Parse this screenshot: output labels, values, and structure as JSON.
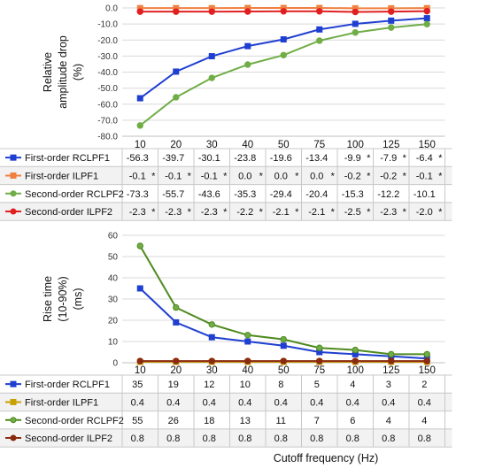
{
  "chart_data": [
    {
      "type": "line",
      "ylabel": [
        "Relative",
        "amplitude drop",
        "(%)"
      ],
      "ylim": [
        -80,
        0
      ],
      "ytick_labels": [
        "0.0",
        "-10.0",
        "-20.0",
        "-30.0",
        "-40.0",
        "-50.0",
        "-60.0",
        "-70.0",
        "-80.0"
      ],
      "ytick_values": [
        0,
        -10,
        -20,
        -30,
        -40,
        -50,
        -60,
        -70,
        -80
      ],
      "categories": [
        "10",
        "20",
        "30",
        "40",
        "50",
        "75",
        "100",
        "125",
        "150"
      ],
      "grid": true,
      "legend_placement": "table-below",
      "series": [
        {
          "name": "First-order RCLPF1",
          "color": "#1f3fd0",
          "marker": "square",
          "values": [
            -56.3,
            -39.7,
            -30.1,
            -23.8,
            -19.6,
            -13.4,
            -9.9,
            -7.9,
            -6.4
          ],
          "labels": [
            "-56.3",
            "-39.7",
            "-30.1",
            "-23.8",
            "-19.6",
            "-13.4",
            "-9.9",
            "-7.9",
            "-6.4"
          ],
          "stars": [
            false,
            false,
            false,
            false,
            false,
            false,
            true,
            true,
            true
          ]
        },
        {
          "name": "First-order ILPF1",
          "color": "#f08040",
          "marker": "square",
          "values": [
            -0.1,
            -0.1,
            -0.1,
            0.0,
            0.0,
            0.0,
            -0.2,
            -0.2,
            -0.1
          ],
          "labels": [
            "-0.1",
            "-0.1",
            "-0.1",
            "0.0",
            "0.0",
            "0.0",
            "-0.2",
            "-0.2",
            "-0.1"
          ],
          "stars": [
            true,
            true,
            true,
            true,
            true,
            true,
            true,
            true,
            true
          ]
        },
        {
          "name": "Second-order RCLPF2",
          "color": "#70ad47",
          "marker": "circle",
          "values": [
            -73.3,
            -55.7,
            -43.6,
            -35.3,
            -29.4,
            -20.4,
            -15.3,
            -12.2,
            -10.1
          ],
          "labels": [
            "-73.3",
            "-55.7",
            "-43.6",
            "-35.3",
            "-29.4",
            "-20.4",
            "-15.3",
            "-12.2",
            "-10.1"
          ],
          "stars": [
            false,
            false,
            false,
            false,
            false,
            false,
            false,
            false,
            false
          ]
        },
        {
          "name": "Second-order ILPF2",
          "color": "#e02020",
          "marker": "circle",
          "values": [
            -2.3,
            -2.3,
            -2.3,
            -2.2,
            -2.1,
            -2.1,
            -2.5,
            -2.3,
            -2.0
          ],
          "labels": [
            "-2.3",
            "-2.3",
            "-2.3",
            "-2.2",
            "-2.1",
            "-2.1",
            "-2.5",
            "-2.3",
            "-2.0"
          ],
          "stars": [
            true,
            true,
            true,
            true,
            true,
            true,
            true,
            true,
            true
          ]
        }
      ]
    },
    {
      "type": "line",
      "ylabel": [
        "Rise time",
        "(10-90%)",
        "(ms)"
      ],
      "ylim": [
        0,
        60
      ],
      "ytick_labels": [
        "0",
        "10",
        "20",
        "30",
        "40",
        "50",
        "60"
      ],
      "ytick_values": [
        0,
        10,
        20,
        30,
        40,
        50,
        60
      ],
      "categories": [
        "10",
        "20",
        "30",
        "40",
        "50",
        "75",
        "100",
        "125",
        "150"
      ],
      "xlabel": "Cutoff frequency (Hz)",
      "grid": true,
      "legend_placement": "table-below",
      "series": [
        {
          "name": "First-order RCLPF1",
          "color": "#1f3fd0",
          "marker": "square",
          "values": [
            35,
            19,
            12,
            10,
            8,
            5,
            4,
            3,
            2
          ],
          "labels": [
            "35",
            "19",
            "12",
            "10",
            "8",
            "5",
            "4",
            "3",
            "2"
          ]
        },
        {
          "name": "First-order ILPF1",
          "color": "#c8a000",
          "marker": "square",
          "values": [
            0.4,
            0.4,
            0.4,
            0.4,
            0.4,
            0.4,
            0.4,
            0.4,
            0.4
          ],
          "labels": [
            "0.4",
            "0.4",
            "0.4",
            "0.4",
            "0.4",
            "0.4",
            "0.4",
            "0.4",
            "0.4"
          ]
        },
        {
          "name": "Second-order RCLPF2",
          "color": "#4e8a1e",
          "fill": "#70ad47",
          "marker": "circle",
          "values": [
            55,
            26,
            18,
            13,
            11,
            7,
            6,
            4,
            4
          ],
          "labels": [
            "55",
            "26",
            "18",
            "13",
            "11",
            "7",
            "6",
            "4",
            "4"
          ]
        },
        {
          "name": "Second-order ILPF2",
          "color": "#8b2a10",
          "marker": "circle",
          "values": [
            0.8,
            0.8,
            0.8,
            0.8,
            0.8,
            0.8,
            0.8,
            0.8,
            0.8
          ],
          "labels": [
            "0.8",
            "0.8",
            "0.8",
            "0.8",
            "0.8",
            "0.8",
            "0.8",
            "0.8",
            "0.8"
          ]
        }
      ]
    }
  ],
  "star_symbol": "*"
}
